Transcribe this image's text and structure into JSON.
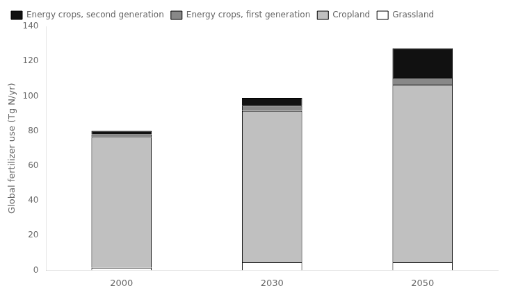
{
  "chart_data": {
    "type": "bar",
    "stacked": true,
    "ylabel": "Global fertilizer use (Tg N/yr)",
    "categories": [
      "2000",
      "2030",
      "2050"
    ],
    "series": [
      {
        "name": "Grassland",
        "color": "#ffffff",
        "values": [
          1.5,
          4.5,
          4.5
        ]
      },
      {
        "name": "Cropland",
        "color": "#c0c0c0",
        "values": [
          75.0,
          87.0,
          102.0
        ]
      },
      {
        "name": "Energy crops, first generation",
        "color": "#888888",
        "values": [
          1.5,
          3.0,
          4.0
        ]
      },
      {
        "name": "Energy crops, second generation",
        "color": "#111111",
        "values": [
          2.0,
          4.5,
          17.0
        ]
      }
    ],
    "ylim": [
      0,
      140
    ],
    "yticks": [
      0,
      20,
      40,
      60,
      80,
      100,
      120,
      140
    ],
    "grid": false,
    "legend": "upper left"
  }
}
